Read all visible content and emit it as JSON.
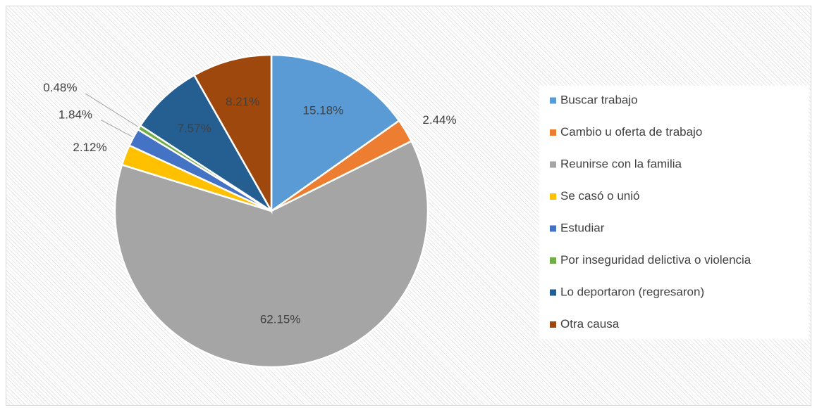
{
  "chart_data": {
    "type": "pie",
    "categories": [
      "Buscar trabajo",
      "Cambio u oferta de trabajo",
      "Reunirse con la familia",
      "Se casó o unió",
      "Estudiar",
      "Por inseguridad delictiva o violencia",
      "Lo deportaron (regresaron)",
      "Otra causa"
    ],
    "values": [
      15.18,
      2.44,
      62.15,
      2.12,
      1.84,
      0.48,
      7.57,
      8.21
    ],
    "value_labels": [
      "15.18%",
      "2.44%",
      "62.15%",
      "2.12%",
      "1.84%",
      "0.48%",
      "7.57%",
      "8.21%"
    ],
    "colors": [
      "#5b9bd5",
      "#ed7d31",
      "#a5a5a5",
      "#ffc000",
      "#4472c4",
      "#70ad47",
      "#255e91",
      "#9e480e"
    ],
    "legend": "right"
  }
}
